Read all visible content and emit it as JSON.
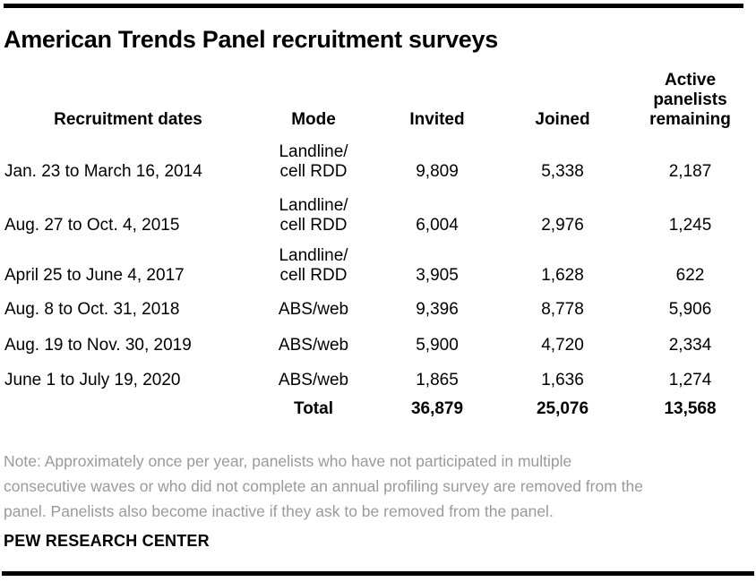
{
  "colors": {
    "rule": "#000000",
    "text": "#000000",
    "note_text": "#9a9a9a"
  },
  "chart_data": {
    "type": "table",
    "title": "American Trends Panel recruitment surveys",
    "columns": [
      "Recruitment dates",
      "Mode",
      "Invited",
      "Joined",
      "Active panelists remaining"
    ],
    "rows": [
      [
        "Jan. 23 to March 16, 2014",
        "Landline/\ncell RDD",
        "9,809",
        "5,338",
        "2,187"
      ],
      [
        "Aug. 27 to Oct. 4, 2015",
        "Landline/\ncell RDD",
        "6,004",
        "2,976",
        "1,245"
      ],
      [
        "April 25 to June 4, 2017",
        "Landline/\ncell RDD",
        "3,905",
        "1,628",
        "622"
      ],
      [
        "Aug. 8 to Oct. 31, 2018",
        "ABS/web",
        "9,396",
        "8,778",
        "5,906"
      ],
      [
        "Aug. 19 to Nov. 30, 2019",
        "ABS/web",
        "5,900",
        "4,720",
        "2,334"
      ],
      [
        "June 1 to July 19, 2020",
        "ABS/web",
        "1,865",
        "1,636",
        "1,274"
      ]
    ],
    "total_row": [
      "",
      "Total",
      "36,879",
      "25,076",
      "13,568"
    ],
    "note": "Note: Approximately once per year, panelists who have not participated in multiple\nconsecutive waves or who did not complete an annual profiling survey are removed from the\npanel. Panelists also become inactive if they ask to be removed from the panel.",
    "source": "PEW RESEARCH CENTER"
  }
}
